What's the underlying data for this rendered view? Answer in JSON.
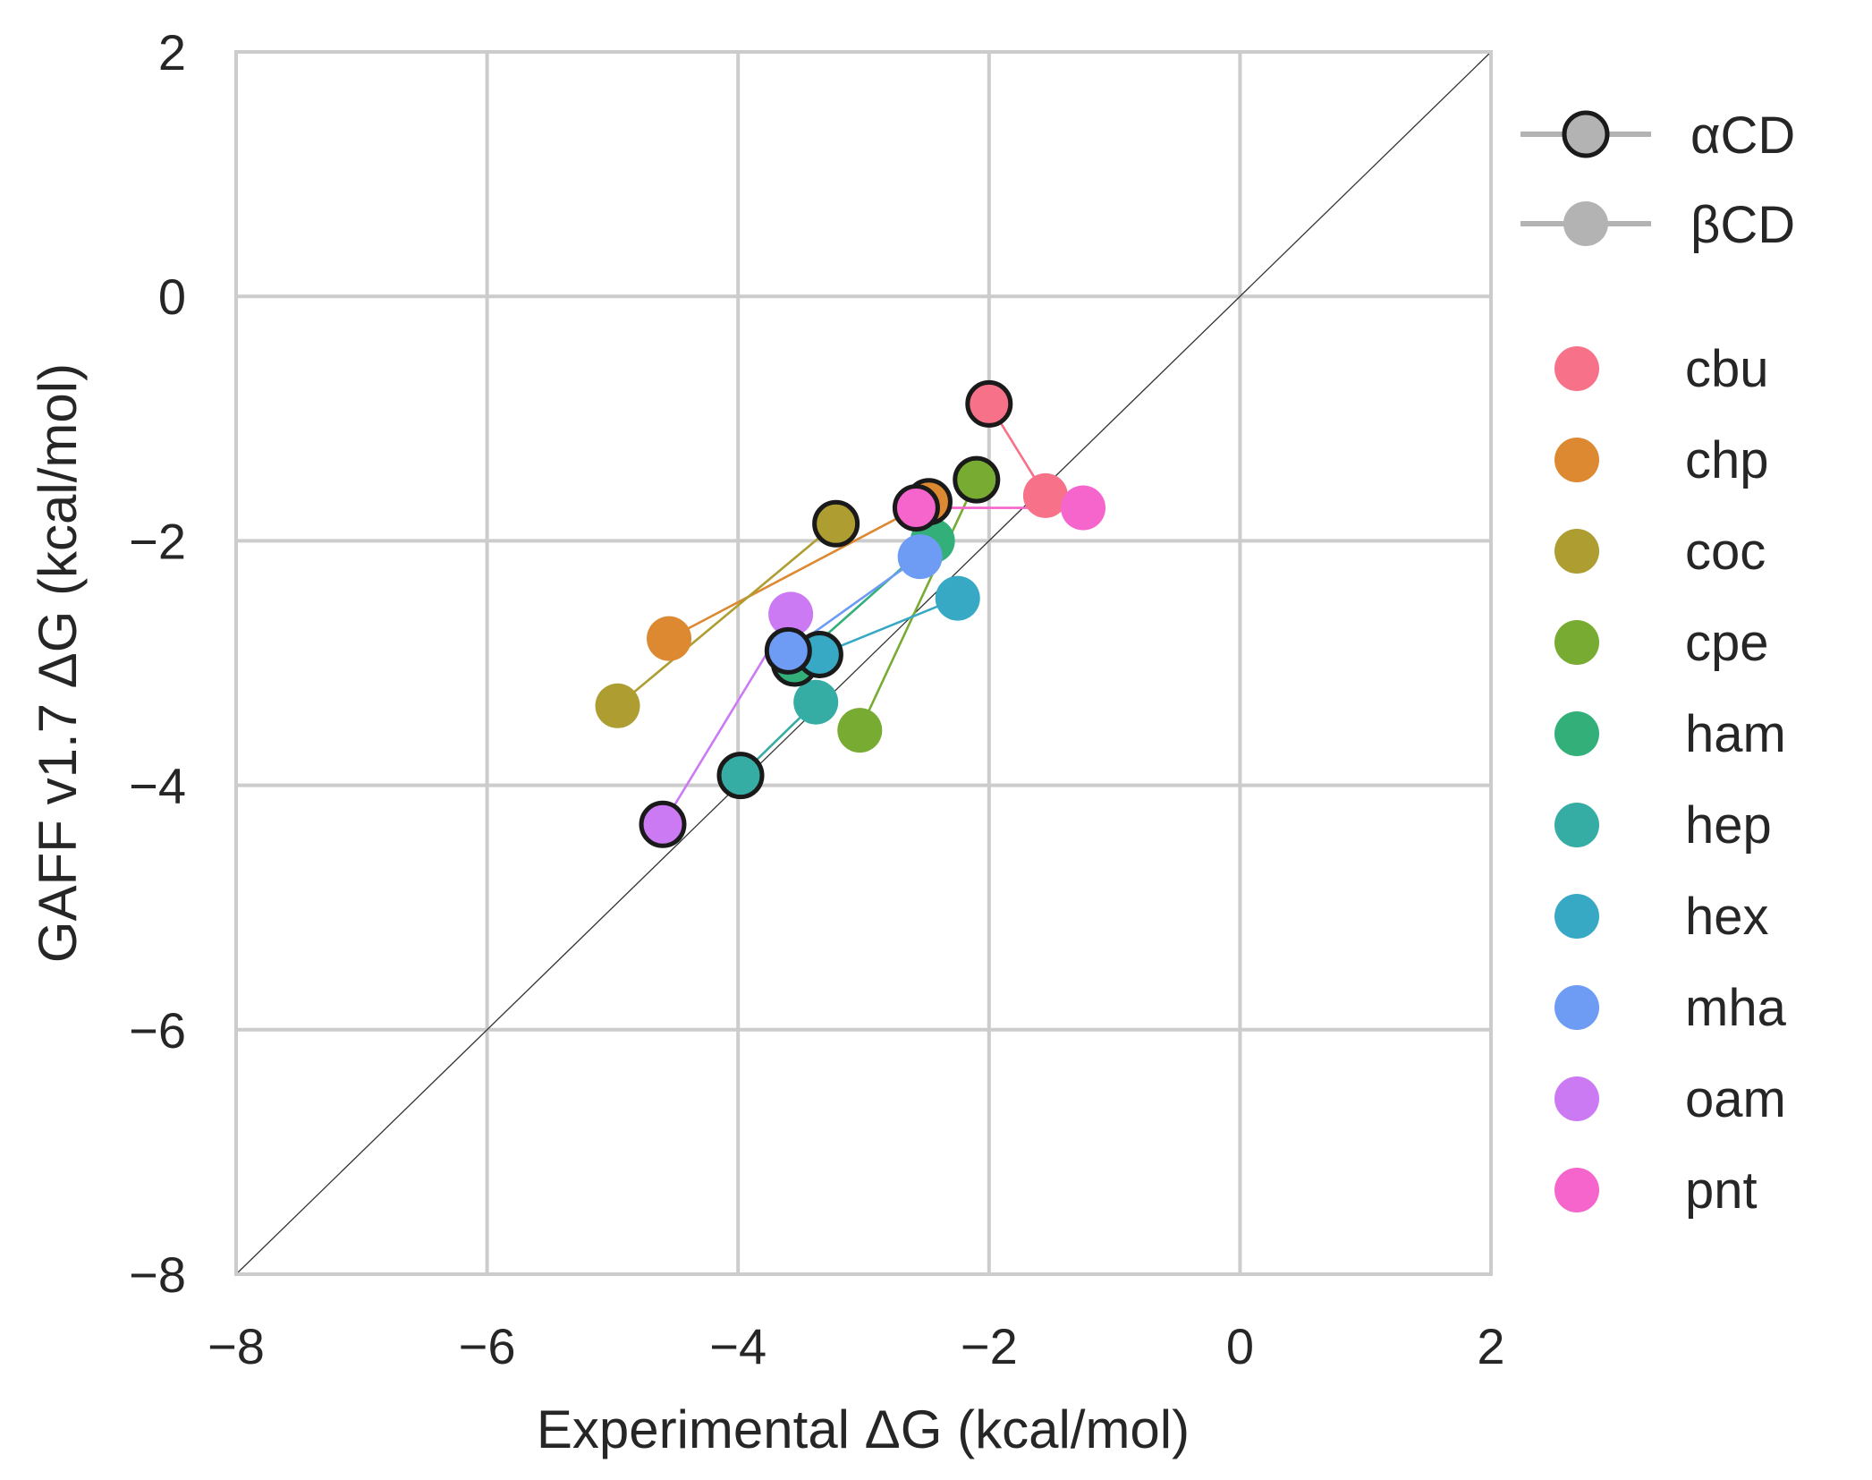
{
  "chart_data": {
    "type": "scatter",
    "title": "",
    "xlabel": "Experimental ΔG (kcal/mol)",
    "ylabel": "GAFF v1.7 ΔG (kcal/mol)",
    "xlim": [
      -8,
      2
    ],
    "ylim": [
      -8,
      2
    ],
    "xticks": [
      {
        "value": -8,
        "label": "−8"
      },
      {
        "value": -6,
        "label": "−6"
      },
      {
        "value": -4,
        "label": "−4"
      },
      {
        "value": -2,
        "label": "−2"
      },
      {
        "value": 0,
        "label": "0"
      },
      {
        "value": 2,
        "label": "2"
      }
    ],
    "yticks": [
      {
        "value": -8,
        "label": "−8"
      },
      {
        "value": -6,
        "label": "−6"
      },
      {
        "value": -4,
        "label": "−4"
      },
      {
        "value": -2,
        "label": "−2"
      },
      {
        "value": 0,
        "label": "0"
      },
      {
        "value": 2,
        "label": "2"
      }
    ],
    "grid": true,
    "diagonal": {
      "from": [
        -8,
        -8
      ],
      "to": [
        2,
        2
      ],
      "color": "#333333"
    },
    "legend_placement": "outside-right",
    "marker_legend": [
      {
        "label": "αCD",
        "style": "outlined"
      },
      {
        "label": "βCD",
        "style": "filled"
      }
    ],
    "series": [
      {
        "name": "cbu",
        "color": "#f77189",
        "alpha": {
          "x": -2.0,
          "y": -0.88
        },
        "beta": {
          "x": -1.55,
          "y": -1.63
        }
      },
      {
        "name": "chp",
        "color": "#dc8932",
        "alpha": {
          "x": -2.48,
          "y": -1.68
        },
        "beta": {
          "x": -4.55,
          "y": -2.8
        }
      },
      {
        "name": "coc",
        "color": "#ae9d31",
        "alpha": {
          "x": -3.22,
          "y": -1.86
        },
        "beta": {
          "x": -4.96,
          "y": -3.35
        }
      },
      {
        "name": "cpe",
        "color": "#77ab31",
        "alpha": {
          "x": -2.1,
          "y": -1.5
        },
        "beta": {
          "x": -3.03,
          "y": -3.55
        }
      },
      {
        "name": "ham",
        "color": "#33b07a",
        "alpha": {
          "x": -3.55,
          "y": -3.0
        },
        "beta": {
          "x": -2.45,
          "y": -2.0
        }
      },
      {
        "name": "hep",
        "color": "#36ada4",
        "alpha": {
          "x": -3.98,
          "y": -3.92
        },
        "beta": {
          "x": -3.38,
          "y": -3.32
        }
      },
      {
        "name": "hex",
        "color": "#38a9c5",
        "alpha": {
          "x": -3.35,
          "y": -2.93
        },
        "beta": {
          "x": -2.25,
          "y": -2.47
        }
      },
      {
        "name": "mha",
        "color": "#6e9bf4",
        "alpha": {
          "x": -3.6,
          "y": -2.9
        },
        "beta": {
          "x": -2.55,
          "y": -2.13
        }
      },
      {
        "name": "oam",
        "color": "#cc7af4",
        "alpha": {
          "x": -4.6,
          "y": -4.32
        },
        "beta": {
          "x": -3.58,
          "y": -2.6
        }
      },
      {
        "name": "pnt",
        "color": "#f565cc",
        "alpha": {
          "x": -2.58,
          "y": -1.73
        },
        "beta": {
          "x": -1.25,
          "y": -1.73
        }
      }
    ]
  }
}
